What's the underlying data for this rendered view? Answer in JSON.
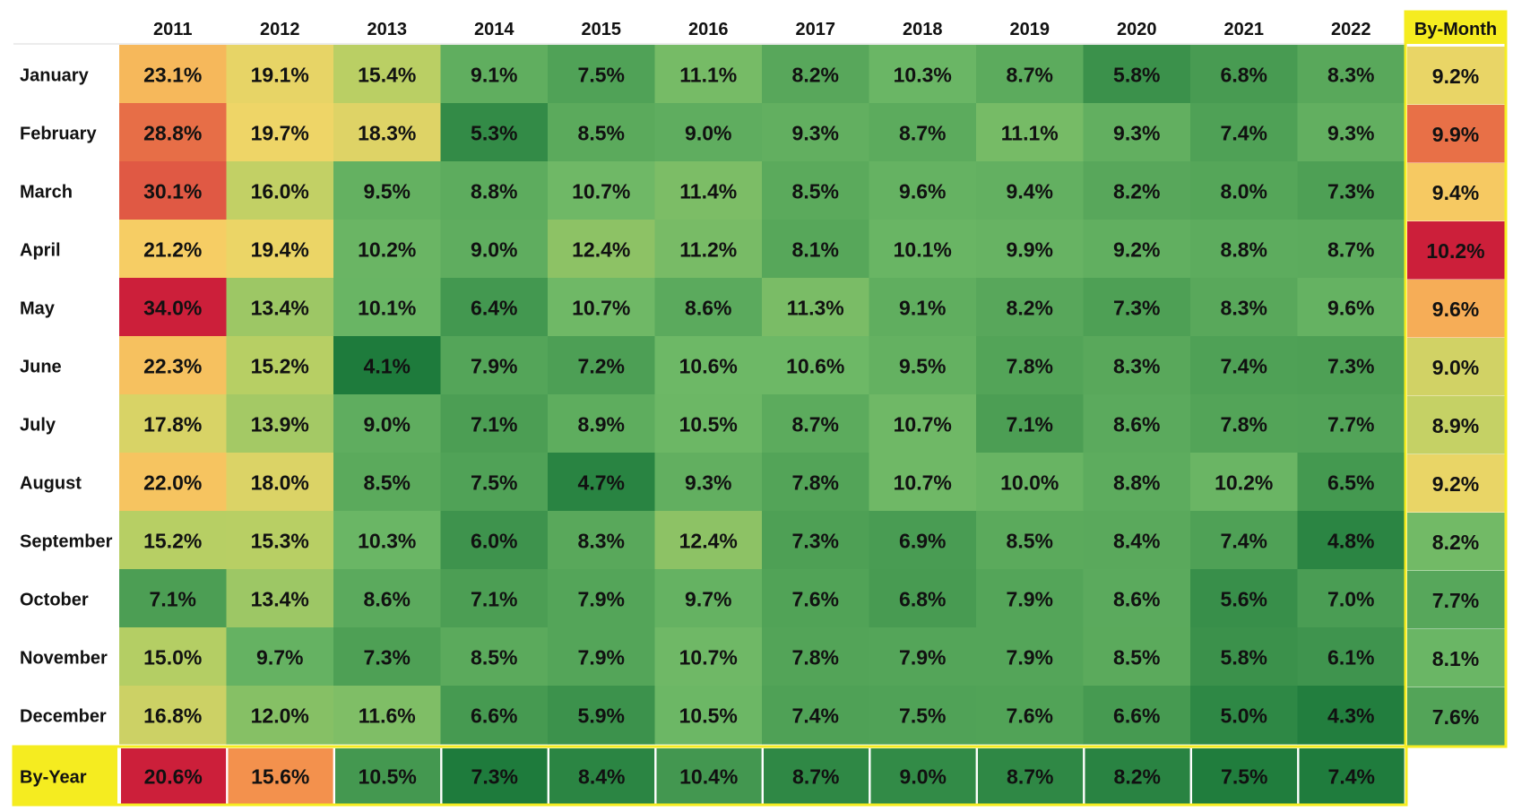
{
  "chart_data": {
    "type": "heatmap",
    "years": [
      "2011",
      "2012",
      "2013",
      "2014",
      "2015",
      "2016",
      "2017",
      "2018",
      "2019",
      "2020",
      "2021",
      "2022"
    ],
    "months": [
      "January",
      "February",
      "March",
      "April",
      "May",
      "June",
      "July",
      "August",
      "September",
      "October",
      "November",
      "December"
    ],
    "values": [
      [
        23.1,
        19.1,
        15.4,
        9.1,
        7.5,
        11.1,
        8.2,
        10.3,
        8.7,
        5.8,
        6.8,
        8.3
      ],
      [
        28.8,
        19.7,
        18.3,
        5.3,
        8.5,
        9.0,
        9.3,
        8.7,
        11.1,
        9.3,
        7.4,
        9.3
      ],
      [
        30.1,
        16.0,
        9.5,
        8.8,
        10.7,
        11.4,
        8.5,
        9.6,
        9.4,
        8.2,
        8.0,
        7.3
      ],
      [
        21.2,
        19.4,
        10.2,
        9.0,
        12.4,
        11.2,
        8.1,
        10.1,
        9.9,
        9.2,
        8.8,
        8.7
      ],
      [
        34.0,
        13.4,
        10.1,
        6.4,
        10.7,
        8.6,
        11.3,
        9.1,
        8.2,
        7.3,
        8.3,
        9.6
      ],
      [
        22.3,
        15.2,
        4.1,
        7.9,
        7.2,
        10.6,
        10.6,
        9.5,
        7.8,
        8.3,
        7.4,
        7.3
      ],
      [
        17.8,
        13.9,
        9.0,
        7.1,
        8.9,
        10.5,
        8.7,
        10.7,
        7.1,
        8.6,
        7.8,
        7.7
      ],
      [
        22.0,
        18.0,
        8.5,
        7.5,
        4.7,
        9.3,
        7.8,
        10.7,
        10.0,
        8.8,
        10.2,
        6.5
      ],
      [
        15.2,
        15.3,
        10.3,
        6.0,
        8.3,
        12.4,
        7.3,
        6.9,
        8.5,
        8.4,
        7.4,
        4.8
      ],
      [
        7.1,
        13.4,
        8.6,
        7.1,
        7.9,
        9.7,
        7.6,
        6.8,
        7.9,
        8.6,
        5.6,
        7.0
      ],
      [
        15.0,
        9.7,
        7.3,
        8.5,
        7.9,
        10.7,
        7.8,
        7.9,
        7.9,
        8.5,
        5.8,
        6.1
      ],
      [
        16.8,
        12.0,
        11.6,
        6.6,
        5.9,
        10.5,
        7.4,
        7.5,
        7.6,
        6.6,
        5.0,
        4.3
      ]
    ],
    "by_month_label": "By-Month",
    "by_month": [
      9.2,
      9.9,
      9.4,
      10.2,
      9.6,
      9.0,
      8.9,
      9.2,
      8.2,
      7.7,
      8.1,
      7.6
    ],
    "by_year_label": "By-Year",
    "by_year": [
      20.6,
      15.6,
      10.5,
      7.3,
      8.4,
      10.4,
      8.7,
      9.0,
      8.7,
      8.2,
      7.5,
      7.4
    ],
    "value_suffix": "%",
    "highlight_color": "#f5ec20",
    "legend": "none"
  }
}
